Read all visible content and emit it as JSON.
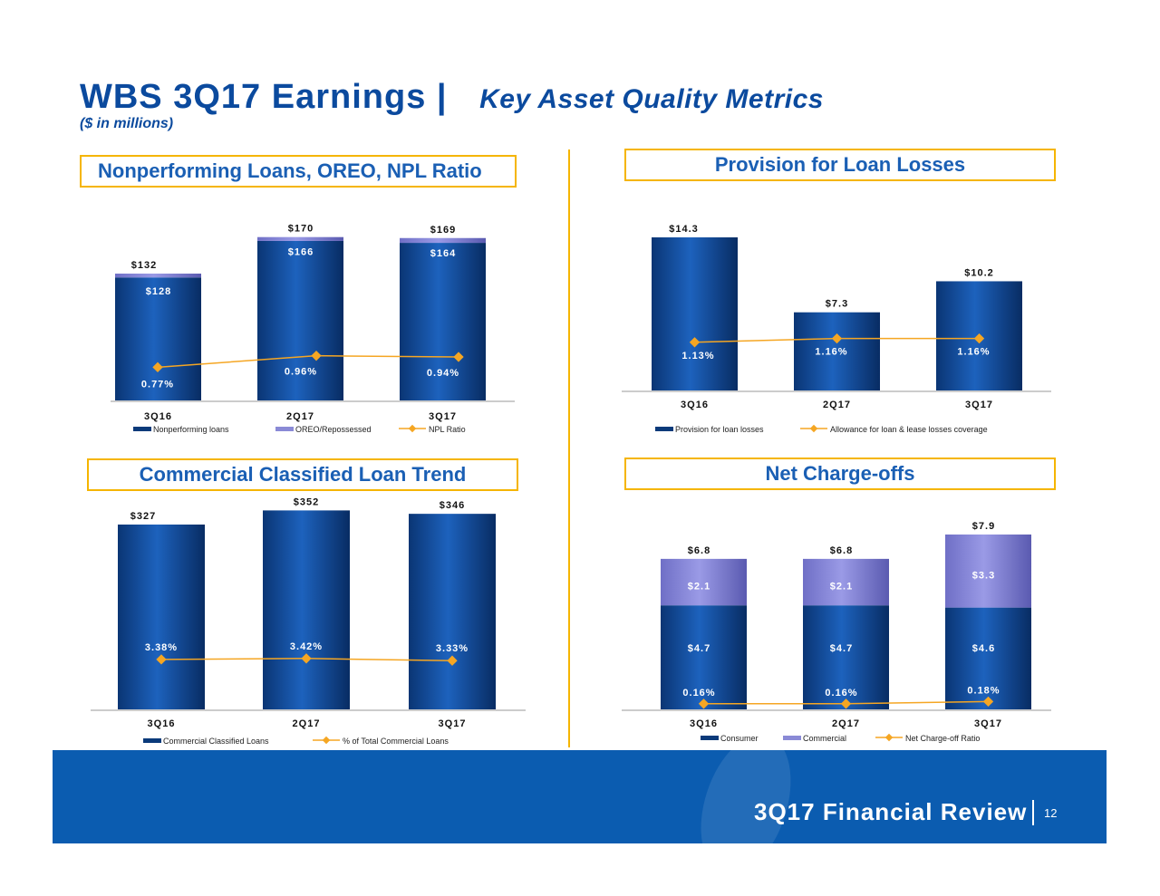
{
  "header": {
    "title": "WBS 3Q17 Earnings",
    "title_sep": "|",
    "subtitle": "Key Asset Quality Metrics",
    "unit_note": "($ in millions)"
  },
  "footer": {
    "text": "3Q17 Financial Review",
    "page": "12"
  },
  "colors": {
    "bar_navy": "#0a3a7a",
    "bar_highlight": "#1f6cc8",
    "oreo_lavender": "#8a8ad6",
    "commercial_lavender": "#7e7ed0",
    "line_gold": "#f5a623",
    "panel_border": "#f5b500",
    "footer_blue": "#0b5cb0"
  },
  "chart_data": [
    {
      "id": "npl",
      "panel_title": "Nonperforming Loans, OREO, NPL Ratio",
      "type": "bar",
      "stacked": true,
      "categories": [
        "3Q16",
        "2Q17",
        "3Q17"
      ],
      "series": [
        {
          "name": "Nonperforming loans",
          "values": [
            128,
            166,
            164
          ],
          "labels": [
            "$128",
            "$166",
            "$164"
          ]
        },
        {
          "name": "OREO/Repossessed",
          "values": [
            4,
            4,
            5
          ]
        }
      ],
      "totals": [
        132,
        170,
        169
      ],
      "total_labels": [
        "$132",
        "$170",
        "$169"
      ],
      "line": {
        "name": "NPL Ratio",
        "values": [
          0.77,
          0.96,
          0.94
        ],
        "labels": [
          "0.77%",
          "0.96%",
          "0.94%"
        ]
      },
      "legend": [
        "Nonperforming loans",
        "OREO/Repossessed",
        "NPL Ratio"
      ],
      "legend_position": "bottom"
    },
    {
      "id": "provision",
      "panel_title": "Provision for Loan Losses",
      "type": "bar",
      "categories": [
        "3Q16",
        "2Q17",
        "3Q17"
      ],
      "series": [
        {
          "name": "Provision for loan losses",
          "values": [
            14.3,
            7.3,
            10.2
          ],
          "labels": [
            "$14.3",
            "$7.3",
            "$10.2"
          ]
        }
      ],
      "line": {
        "name": "Allowance for loan & lease losses coverage",
        "values": [
          1.13,
          1.16,
          1.16
        ],
        "labels": [
          "1.13%",
          "1.16%",
          "1.16%"
        ]
      },
      "legend": [
        "Provision for loan losses",
        "Allowance for loan & lease losses coverage"
      ],
      "legend_position": "bottom"
    },
    {
      "id": "classified",
      "panel_title": "Commercial Classified Loan Trend",
      "type": "bar",
      "categories": [
        "3Q16",
        "2Q17",
        "3Q17"
      ],
      "series": [
        {
          "name": "Commercial Classified Loans",
          "values": [
            327,
            352,
            346
          ],
          "labels": [
            "$327",
            "$352",
            "$346"
          ]
        }
      ],
      "line": {
        "name": "% of Total Commercial Loans",
        "values": [
          3.38,
          3.42,
          3.33
        ],
        "labels": [
          "3.38%",
          "3.42%",
          "3.33%"
        ]
      },
      "legend": [
        "Commercial Classified Loans",
        "% of Total Commercial Loans"
      ],
      "legend_position": "bottom"
    },
    {
      "id": "chargeoffs",
      "panel_title": "Net Charge-offs",
      "type": "bar",
      "stacked": true,
      "categories": [
        "3Q16",
        "2Q17",
        "3Q17"
      ],
      "series": [
        {
          "name": "Consumer",
          "values": [
            4.7,
            4.7,
            4.6
          ],
          "labels": [
            "$4.7",
            "$4.7",
            "$4.6"
          ]
        },
        {
          "name": "Commercial",
          "values": [
            2.1,
            2.1,
            3.3
          ],
          "labels": [
            "$2.1",
            "$2.1",
            "$3.3"
          ]
        }
      ],
      "totals": [
        6.8,
        6.8,
        7.9
      ],
      "total_labels": [
        "$6.8",
        "$6.8",
        "$7.9"
      ],
      "line": {
        "name": "Net Charge-off Ratio",
        "values": [
          0.16,
          0.16,
          0.18
        ],
        "labels": [
          "0.16%",
          "0.16%",
          "0.18%"
        ]
      },
      "legend": [
        "Consumer",
        "Commercial",
        "Net Charge-off Ratio"
      ],
      "legend_position": "bottom"
    }
  ]
}
